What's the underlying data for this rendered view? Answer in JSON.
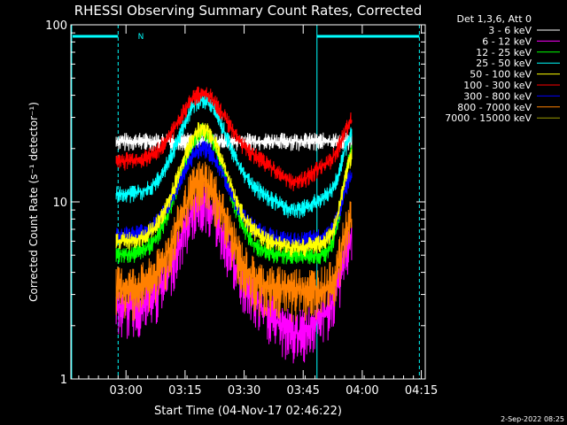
{
  "chart_data": {
    "type": "line",
    "title": "RHESSI Observing Summary Count Rates, Corrected",
    "xlabel": "Start Time (04-Nov-17 02:46:22)",
    "ylabel": "Corrected Count Rate (s⁻¹ detector⁻¹)",
    "yscale": "log",
    "ylim": [
      1,
      100
    ],
    "y_ticks": [
      {
        "value": 1,
        "label": "1"
      },
      {
        "value": 10,
        "label": "10"
      },
      {
        "value": 100,
        "label": "100"
      }
    ],
    "xlim_minutes": [
      0,
      90
    ],
    "x_ticks": [
      {
        "minute": 14,
        "label": "03:00"
      },
      {
        "minute": 29,
        "label": "03:15"
      },
      {
        "minute": 44,
        "label": "03:30"
      },
      {
        "minute": 59,
        "label": "03:45"
      },
      {
        "minute": 74,
        "label": "04:00"
      },
      {
        "minute": 89,
        "label": "04:15"
      }
    ],
    "legend_title": "Det 1,3,6, Att 0",
    "legend_position": "top-right",
    "series": [
      {
        "name": "3 - 6 keV",
        "color": "#ffffff",
        "base": 22,
        "peak": 22,
        "floor": 22,
        "end": 22
      },
      {
        "name": "6 - 12 keV",
        "color": "#ff00ff",
        "base": 2.5,
        "peak": 10,
        "floor": 1.8,
        "end": 6.5
      },
      {
        "name": "12 - 25 keV",
        "color": "#00ff00",
        "base": 5,
        "peak": 25,
        "floor": 5,
        "end": 19
      },
      {
        "name": "25 - 50 keV",
        "color": "#00ffff",
        "base": 11,
        "peak": 38,
        "floor": 9,
        "end": 24
      },
      {
        "name": "50 - 100 keV",
        "color": "#ffff00",
        "base": 6,
        "peak": 26,
        "floor": 5.5,
        "end": 18
      },
      {
        "name": "100 - 300 keV",
        "color": "#ff0000",
        "base": 17,
        "peak": 41,
        "floor": 13,
        "end": 29
      },
      {
        "name": "300 - 800 keV",
        "color": "#0000ff",
        "base": 6.5,
        "peak": 20,
        "floor": 6,
        "end": 14
      },
      {
        "name": "800 - 7000 keV",
        "color": "#ff8000",
        "base": 3.2,
        "peak": 13,
        "floor": 3.2,
        "end": 8
      },
      {
        "name": "7000 - 15000 keV",
        "color": "#999900",
        "base": 22,
        "peak": 22,
        "floor": 22,
        "end": 22
      }
    ],
    "annotations": {
      "flag_label": "N",
      "date_stamp": "2-Sep-2022 08:25"
    }
  }
}
